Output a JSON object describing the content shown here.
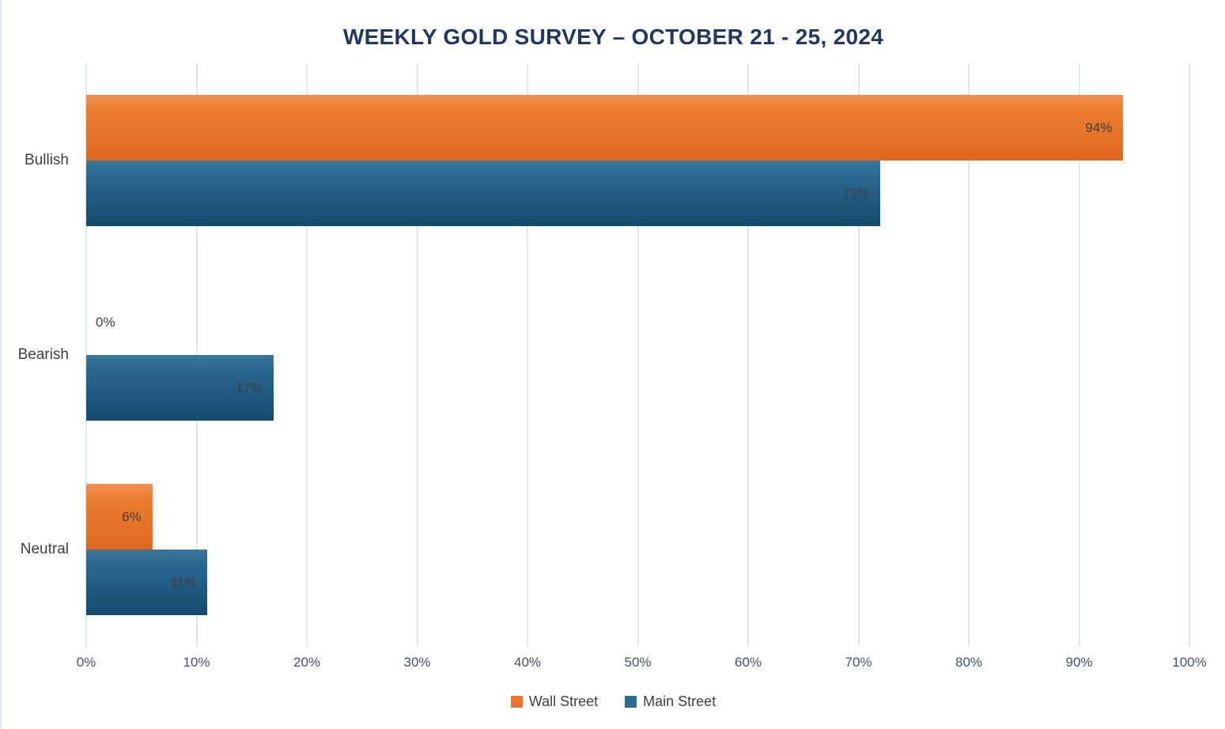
{
  "chart_data": {
    "type": "bar",
    "orientation": "horizontal",
    "title": "WEEKLY GOLD SURVEY – OCTOBER 21 - 25, 2024",
    "categories": [
      "Bullish",
      "Bearish",
      "Neutral"
    ],
    "series": [
      {
        "name": "Wall Street",
        "values": [
          94,
          0,
          6
        ],
        "labels": [
          "94%",
          "0%",
          "6%"
        ],
        "color": "#ED7431",
        "gradient_top": "#F2914F",
        "gradient_mid": "#ED7D31",
        "gradient_bottom": "#DD6820"
      },
      {
        "name": "Main Street",
        "values": [
          72,
          17,
          11
        ],
        "labels": [
          "72%",
          "17%",
          "11%"
        ],
        "color": "#2C6C95",
        "gradient_top": "#3E769C",
        "gradient_mid": "#2A6890",
        "gradient_bottom": "#154A6E"
      }
    ],
    "x_axis": {
      "min": 0,
      "max": 100,
      "tick_step": 10,
      "tick_labels": [
        "0%",
        "10%",
        "20%",
        "30%",
        "40%",
        "50%",
        "60%",
        "70%",
        "80%",
        "90%",
        "100%"
      ]
    },
    "xlabel": "",
    "ylabel": "",
    "grid": true,
    "legend_position": "bottom",
    "colors": {
      "title_text": "#1F3864",
      "tick_text": "#44546A",
      "category_text": "#404040",
      "data_label_text": "#404040",
      "gridline": "#DDE8F3",
      "background": "#FFFFFF"
    }
  }
}
